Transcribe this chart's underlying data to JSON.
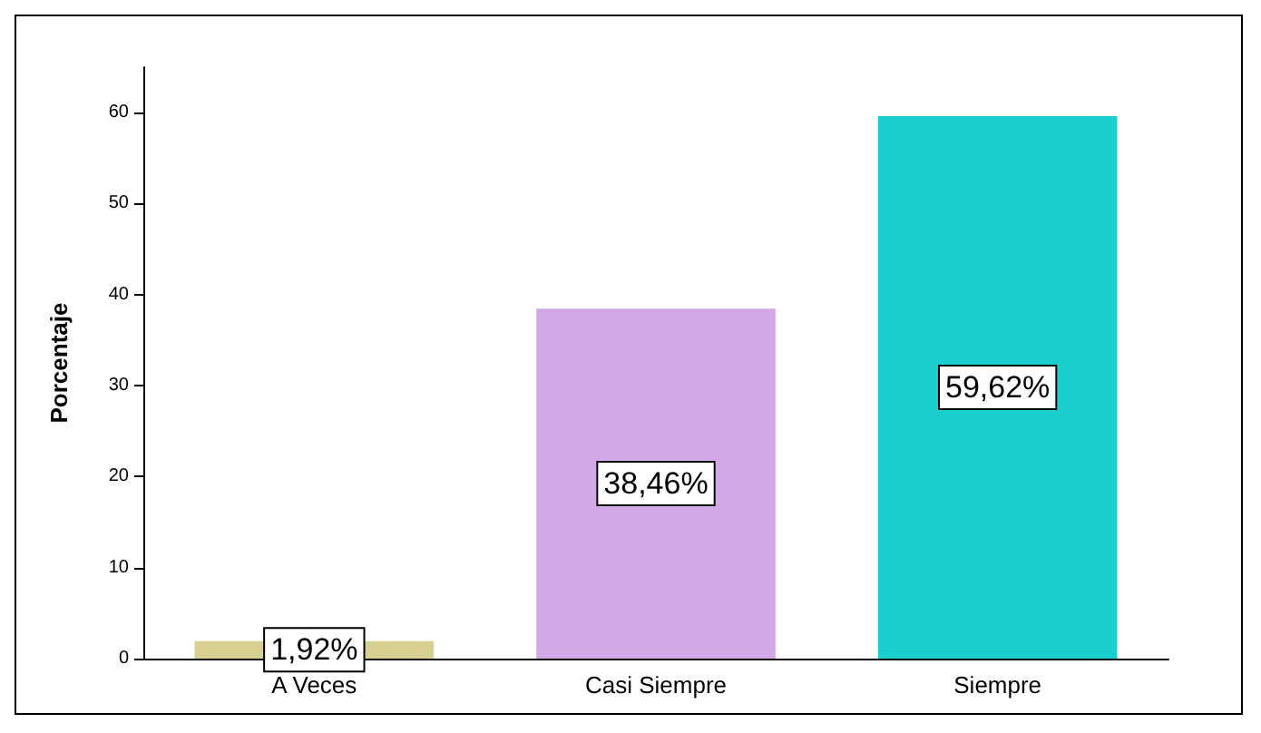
{
  "chart_data": {
    "type": "bar",
    "ylabel": "Porcentaje",
    "categories": [
      "A Veces",
      "Casi Siempre",
      "Siempre"
    ],
    "values": [
      1.92,
      38.46,
      59.62
    ],
    "colors": [
      "#d8d090",
      "#d2a8e6",
      "#1ccfcf"
    ],
    "value_labels": [
      "1,92%",
      "38,46%",
      "59,62%"
    ],
    "ylim": [
      0,
      65
    ],
    "yticks": [
      0,
      10,
      20,
      30,
      40,
      50,
      60
    ]
  }
}
